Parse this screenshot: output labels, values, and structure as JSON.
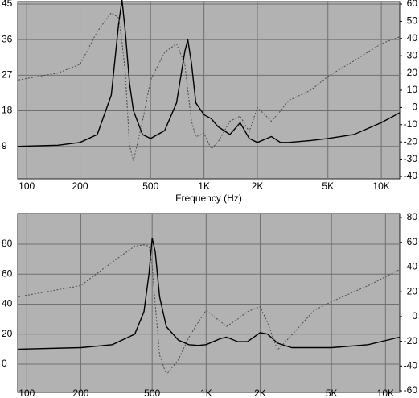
{
  "chart_data": [
    {
      "type": "line",
      "x_label": "Frequency (Hz)",
      "log_x": true,
      "grid": true,
      "xlim": [
        89,
        12700
      ],
      "xticks": [
        100,
        200,
        500,
        {
          "value": 1000,
          "label": "1K"
        },
        {
          "value": 2000,
          "label": "2K"
        },
        {
          "value": 5000,
          "label": "5K"
        },
        {
          "value": 10000,
          "label": "10K"
        }
      ],
      "ylim": [
        0.8,
        45.6
      ],
      "yticks": [
        9,
        18,
        27,
        36,
        45
      ],
      "y2lim": [
        -41.4,
        61.4
      ],
      "y2ticks": [
        -40,
        -30,
        -20,
        -10,
        0,
        10,
        20,
        30,
        40,
        50,
        60
      ],
      "x": [
        90,
        150,
        200,
        250,
        300,
        330,
        345,
        360,
        380,
        400,
        450,
        500,
        600,
        700,
        780,
        810,
        850,
        900,
        1000,
        1100,
        1200,
        1400,
        1600,
        1800,
        2000,
        2400,
        2700,
        3000,
        4000,
        5000,
        7000,
        10000,
        12700
      ],
      "series": [
        {
          "style": "solid",
          "color": "#000000",
          "values": [
            9,
            9.3,
            10,
            12,
            22,
            40,
            46,
            38,
            25,
            18,
            12,
            11,
            13,
            20,
            33,
            36,
            30,
            20,
            17,
            16,
            14,
            12,
            15,
            11,
            10,
            11.5,
            10,
            10,
            10.5,
            11,
            12,
            15,
            17.5
          ]
        },
        {
          "style": "dotted",
          "color": "#4a4a4a",
          "axis": "y2",
          "values": [
            16,
            20,
            25,
            44,
            55,
            52,
            38,
            20,
            -22,
            -31,
            -8,
            16,
            32,
            37,
            25,
            10,
            -8,
            -17,
            -15,
            -24,
            -20,
            -8,
            -5,
            -14,
            0,
            -8,
            -2,
            4,
            10,
            18,
            27,
            37,
            41
          ]
        }
      ]
    },
    {
      "type": "line",
      "log_x": true,
      "grid": true,
      "xlim": [
        89,
        12000
      ],
      "xticks": [
        100,
        200,
        500,
        {
          "value": 1000,
          "label": "1K"
        },
        {
          "value": 2000,
          "label": "2K"
        },
        {
          "value": 5000,
          "label": "5K"
        },
        {
          "value": 10000,
          "label": "10K"
        }
      ],
      "ylim": [
        -18.8,
        100.4
      ],
      "yticks": [
        0,
        20,
        40,
        60,
        80
      ],
      "y2lim": [
        -61.3,
        83.3
      ],
      "y2ticks": [
        -60,
        -40,
        -20,
        0,
        20,
        40,
        60,
        80
      ],
      "x": [
        90,
        200,
        300,
        400,
        450,
        480,
        500,
        520,
        550,
        600,
        700,
        800,
        900,
        1000,
        1200,
        1300,
        1500,
        1700,
        2000,
        2200,
        2500,
        3000,
        4000,
        5000,
        8000,
        12000
      ],
      "series": [
        {
          "style": "solid",
          "color": "#000000",
          "values": [
            10,
            11,
            13,
            20,
            35,
            60,
            84,
            75,
            45,
            25,
            16,
            13,
            12.5,
            13,
            17,
            18,
            15,
            15,
            21,
            20,
            14,
            11,
            11,
            11,
            13,
            18
          ]
        },
        {
          "style": "dotted",
          "color": "#4a4a4a",
          "axis": "y2",
          "values": [
            16,
            25,
            44,
            57,
            58,
            57,
            41,
            10,
            -31,
            -47,
            -35,
            -17,
            -5,
            5,
            -4,
            -8,
            -2,
            4,
            8,
            -5,
            -27,
            -15,
            5,
            12,
            25,
            38
          ]
        }
      ]
    }
  ]
}
